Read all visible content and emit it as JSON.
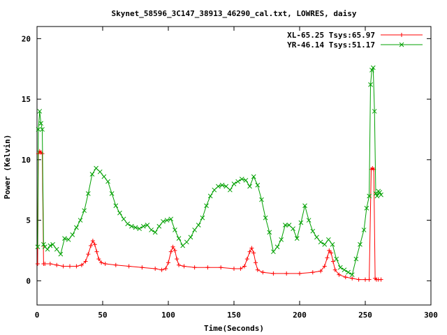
{
  "chart_data": {
    "type": "line",
    "title": "Skynet_58596_3C147_38913_46290_cal.txt, LOWRES, daisy",
    "xlabel": "Time(Seconds)",
    "ylabel": "Power (Kelvin)",
    "xlim": [
      0,
      300
    ],
    "ylim": [
      -2,
      21
    ],
    "xticks": [
      0,
      50,
      100,
      150,
      200,
      250,
      300
    ],
    "yticks": [
      0,
      5,
      10,
      15,
      20
    ],
    "grid": false,
    "legend_position": "top-right",
    "series": [
      {
        "name": "XL-65.25 Tsys:65.97",
        "color": "#ff0000",
        "marker": "+",
        "x": [
          0.5,
          1,
          2,
          3,
          4,
          5,
          6,
          10,
          15,
          20,
          25,
          30,
          34,
          37,
          39,
          41,
          42.5,
          44,
          45.5,
          47,
          49,
          52,
          60,
          70,
          80,
          90,
          95,
          98,
          100,
          102,
          103.5,
          105,
          106.5,
          108,
          112,
          120,
          130,
          140,
          150,
          155,
          158,
          160,
          162,
          163.5,
          165,
          166.5,
          168,
          172,
          180,
          190,
          200,
          210,
          216,
          219,
          221,
          222.5,
          224,
          225.5,
          227,
          230,
          235,
          240,
          245,
          250,
          253,
          254.5,
          255.5,
          256.5,
          257.5,
          258.5,
          260,
          262
        ],
        "values": [
          1.4,
          10.5,
          10.7,
          10.6,
          10.5,
          1.4,
          1.4,
          1.4,
          1.3,
          1.2,
          1.2,
          1.2,
          1.3,
          1.6,
          2.2,
          2.9,
          3.3,
          3.0,
          2.4,
          1.8,
          1.5,
          1.4,
          1.3,
          1.2,
          1.1,
          1.0,
          0.9,
          1.0,
          1.5,
          2.4,
          2.8,
          2.5,
          1.8,
          1.3,
          1.2,
          1.1,
          1.1,
          1.1,
          1.0,
          1.0,
          1.2,
          1.8,
          2.4,
          2.7,
          2.3,
          1.5,
          0.9,
          0.7,
          0.6,
          0.6,
          0.6,
          0.7,
          0.8,
          1.2,
          1.9,
          2.5,
          2.3,
          1.6,
          0.9,
          0.5,
          0.3,
          0.2,
          0.1,
          0.1,
          0.1,
          9.2,
          9.3,
          9.2,
          0.2,
          0.1,
          0.1,
          0.1
        ]
      },
      {
        "name": "YR-46.14 Tsys:51.17",
        "color": "#00a000",
        "marker": "x",
        "x": [
          0.5,
          1,
          2,
          3,
          4,
          5,
          6,
          8,
          10,
          12,
          15,
          18,
          21,
          24,
          27,
          30,
          33,
          36,
          39,
          42,
          45,
          48,
          51,
          54,
          57,
          60,
          63,
          66,
          69,
          72,
          75,
          78,
          81,
          84,
          87,
          90,
          93,
          96,
          99,
          102,
          105,
          108,
          111,
          114,
          117,
          120,
          123,
          126,
          129,
          132,
          135,
          138,
          141,
          144,
          147,
          150,
          153,
          156,
          159,
          162,
          165,
          168,
          171,
          174,
          177,
          180,
          183,
          186,
          189,
          192,
          195,
          198,
          201,
          204,
          207,
          210,
          213,
          216,
          219,
          222,
          225,
          228,
          231,
          234,
          237,
          240,
          243,
          246,
          249,
          251,
          253,
          254,
          255,
          256,
          257,
          258,
          259,
          260,
          261,
          262
        ],
        "values": [
          2.8,
          12.5,
          14.0,
          13.0,
          12.5,
          3.0,
          2.8,
          2.6,
          2.9,
          3.0,
          2.6,
          2.2,
          3.5,
          3.4,
          3.8,
          4.4,
          5.0,
          5.8,
          7.2,
          8.8,
          9.3,
          9.0,
          8.6,
          8.2,
          7.2,
          6.2,
          5.6,
          5.1,
          4.7,
          4.5,
          4.4,
          4.3,
          4.5,
          4.6,
          4.2,
          4.0,
          4.5,
          4.9,
          5.0,
          5.1,
          4.2,
          3.5,
          2.9,
          3.2,
          3.6,
          4.2,
          4.6,
          5.2,
          6.2,
          7.0,
          7.5,
          7.8,
          7.9,
          7.8,
          7.5,
          8.0,
          8.2,
          8.4,
          8.3,
          7.8,
          8.6,
          7.9,
          6.7,
          5.2,
          4.0,
          2.4,
          2.8,
          3.4,
          4.6,
          4.6,
          4.3,
          3.5,
          4.8,
          6.2,
          5.0,
          4.1,
          3.6,
          3.2,
          3.0,
          3.4,
          3.0,
          1.8,
          1.1,
          0.9,
          0.7,
          0.5,
          1.8,
          3.0,
          4.2,
          6.0,
          7.0,
          16.2,
          17.4,
          17.6,
          14.0,
          7.2,
          7.0,
          7.4,
          7.3,
          7.1
        ]
      }
    ]
  }
}
